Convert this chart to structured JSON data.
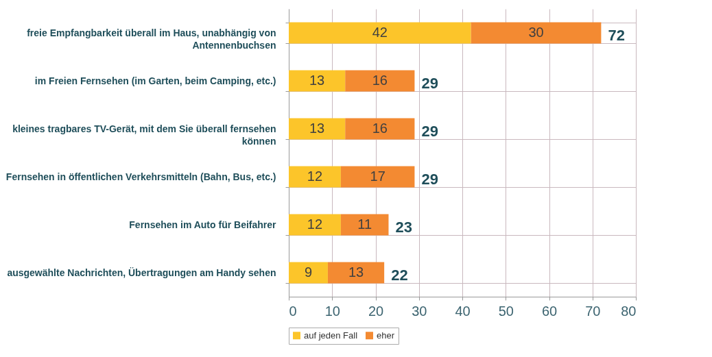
{
  "chart_data": {
    "type": "bar",
    "orientation": "horizontal",
    "stacked": true,
    "categories": [
      "freie Empfangbarkeit überall im Haus, unabhängig von Antennenbuchsen",
      "im Freien Fernsehen (im Garten, beim Camping, etc.)",
      "kleines tragbares TV-Gerät, mit dem Sie überall fernsehen können",
      "Fernsehen in öffentlichen Verkehrsmitteln (Bahn, Bus, etc.)",
      "Fernsehen im Auto für Beifahrer",
      "ausgewählte Nachrichten, Übertragungen am Handy sehen"
    ],
    "series": [
      {
        "name": "auf jeden Fall",
        "color": "#fcc52a",
        "values": [
          42,
          13,
          13,
          12,
          12,
          9
        ]
      },
      {
        "name": "eher",
        "color": "#f38a32",
        "values": [
          30,
          16,
          16,
          17,
          11,
          13
        ]
      }
    ],
    "totals": [
      "72",
      "29",
      "29",
      "29",
      "23",
      "22"
    ],
    "data_labels": true,
    "xlim": [
      0,
      80
    ],
    "xticks": [
      0,
      10,
      20,
      30,
      40,
      50,
      60,
      70,
      80
    ],
    "grid": true,
    "legend": "bottom"
  }
}
